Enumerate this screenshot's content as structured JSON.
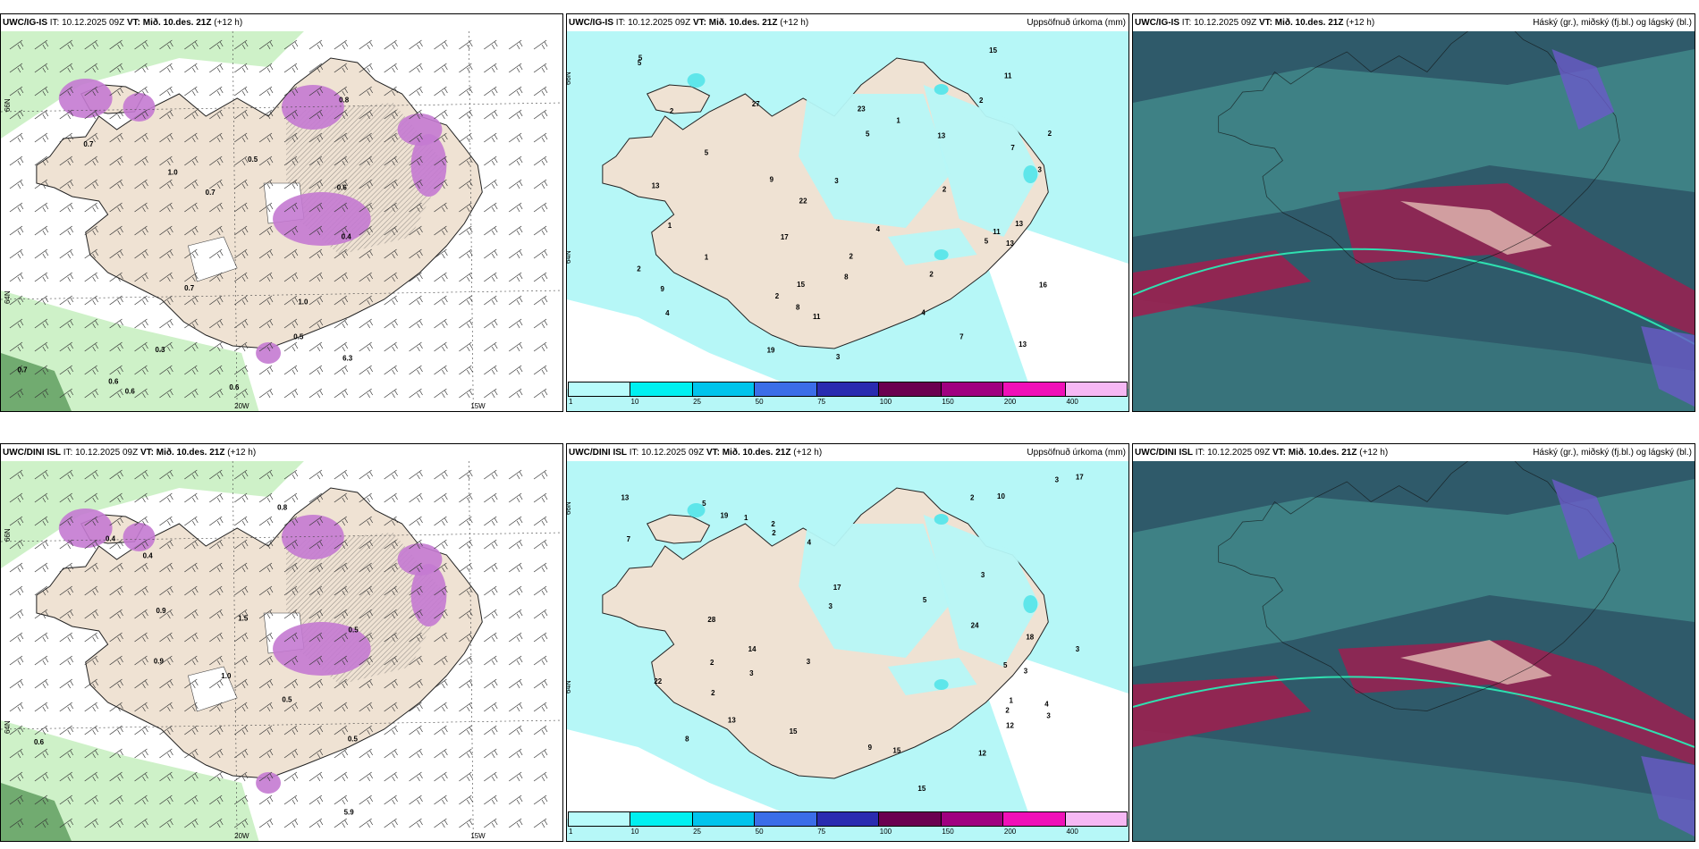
{
  "rows": [
    {
      "model": "UWC/IG-IS",
      "panels": [
        {
          "model": "UWC/IG-IS",
          "it_label": "IT:",
          "it": "10.12.2025 09Z",
          "vt_label": "VT:",
          "vt": "Mið. 10.des. 21Z",
          "lead": "(+12 h)",
          "right_title": ""
        },
        {
          "model": "UWC/IG-IS",
          "it_label": "IT:",
          "it": "10.12.2025 09Z",
          "vt_label": "VT:",
          "vt": "Mið. 10.des. 21Z",
          "lead": "(+12 h)",
          "right_title": "Uppsöfnuð úrkoma (mm)"
        },
        {
          "model": "UWC/IG-IS",
          "it_label": "IT:",
          "it": "10.12.2025 09Z",
          "vt_label": "VT:",
          "vt": "Mið. 10.des. 21Z",
          "lead": "(+12 h)",
          "right_title": "Háský (gr.), miðský (fj.bl.) og lágský (bl.)"
        }
      ]
    },
    {
      "model": "UWC/DINI ISL",
      "panels": [
        {
          "model": "UWC/DINI ISL",
          "it_label": "IT:",
          "it": "10.12.2025 09Z",
          "vt_label": "VT:",
          "vt": "Mið. 10.des. 21Z",
          "lead": "(+12 h)",
          "right_title": ""
        },
        {
          "model": "UWC/DINI ISL",
          "it_label": "IT:",
          "it": "10.12.2025 09Z",
          "vt_label": "VT:",
          "vt": "Mið. 10.des. 21Z",
          "lead": "(+12 h)",
          "right_title": "Uppsöfnuð úrkoma (mm)"
        },
        {
          "model": "UWC/DINI ISL",
          "it_label": "IT:",
          "it": "10.12.2025 09Z",
          "vt_label": "VT:",
          "vt": "Mið. 10.des. 21Z",
          "lead": "(+12 h)",
          "right_title": "Háský (gr.), miðský (fj.bl.) og lágský (bl.)"
        }
      ]
    }
  ],
  "axis_labels": {
    "lat66": "66N",
    "lat64": "64N",
    "lon20": "20W",
    "lon15": "15W"
  },
  "precip_legend": {
    "thresholds": [
      "1",
      "10",
      "25",
      "50",
      "75",
      "100",
      "150",
      "200",
      "400"
    ],
    "colors": [
      "#b8fbfb",
      "#00f0f0",
      "#00c4ec",
      "#3b6de8",
      "#2a2bb0",
      "#6b0050",
      "#a00080",
      "#f010b8",
      "#f6b8f4"
    ]
  },
  "colors": {
    "land": "#efe2d3",
    "sea": "#ffffff",
    "precip_light": "#b6f7f7",
    "precip_med": "#5ee6ea",
    "snow_green": "#c9efc2",
    "snow_purple": "#c47ad2",
    "cloud_dark": "#2f5a6a",
    "cloud_teal": "#4aa39a",
    "cloud_red": "#9b2050"
  },
  "snow_values": {
    "top": [
      "0.6",
      "0.7",
      "0.6",
      "0.7",
      "0.6",
      "0.6",
      "1.0",
      "0.7",
      "6.3",
      "0.7",
      "0.3",
      "0.5",
      "1.0",
      "0.8",
      "0.4",
      "0.5"
    ],
    "bottom": [
      "0.6",
      "0.5",
      "0.9",
      "0.4",
      "1.0",
      "5.9",
      "0.5",
      "0.9",
      "0.8",
      "0.5",
      "1.5",
      "0.4"
    ]
  },
  "precip_values": {
    "top": [
      "2",
      "2",
      "2",
      "2",
      "17",
      "13",
      "5",
      "3",
      "1",
      "11",
      "15",
      "9",
      "4",
      "2",
      "8",
      "5",
      "11",
      "9",
      "4",
      "15",
      "11",
      "13",
      "16",
      "13",
      "8",
      "27",
      "23",
      "22",
      "3",
      "1",
      "7",
      "2",
      "5",
      "7",
      "13",
      "13",
      "5",
      "19",
      "2",
      "2",
      "1",
      "3",
      "4",
      "5"
    ],
    "bottom": [
      "2",
      "2",
      "1",
      "2",
      "2",
      "18",
      "15",
      "12",
      "3",
      "3",
      "3",
      "3",
      "2",
      "14",
      "15",
      "13",
      "7",
      "10",
      "17",
      "9",
      "4",
      "15",
      "8",
      "19",
      "24",
      "28",
      "22",
      "17",
      "13",
      "5",
      "12",
      "3",
      "3",
      "5",
      "3",
      "1",
      "3",
      "4",
      "5",
      "2"
    ]
  }
}
